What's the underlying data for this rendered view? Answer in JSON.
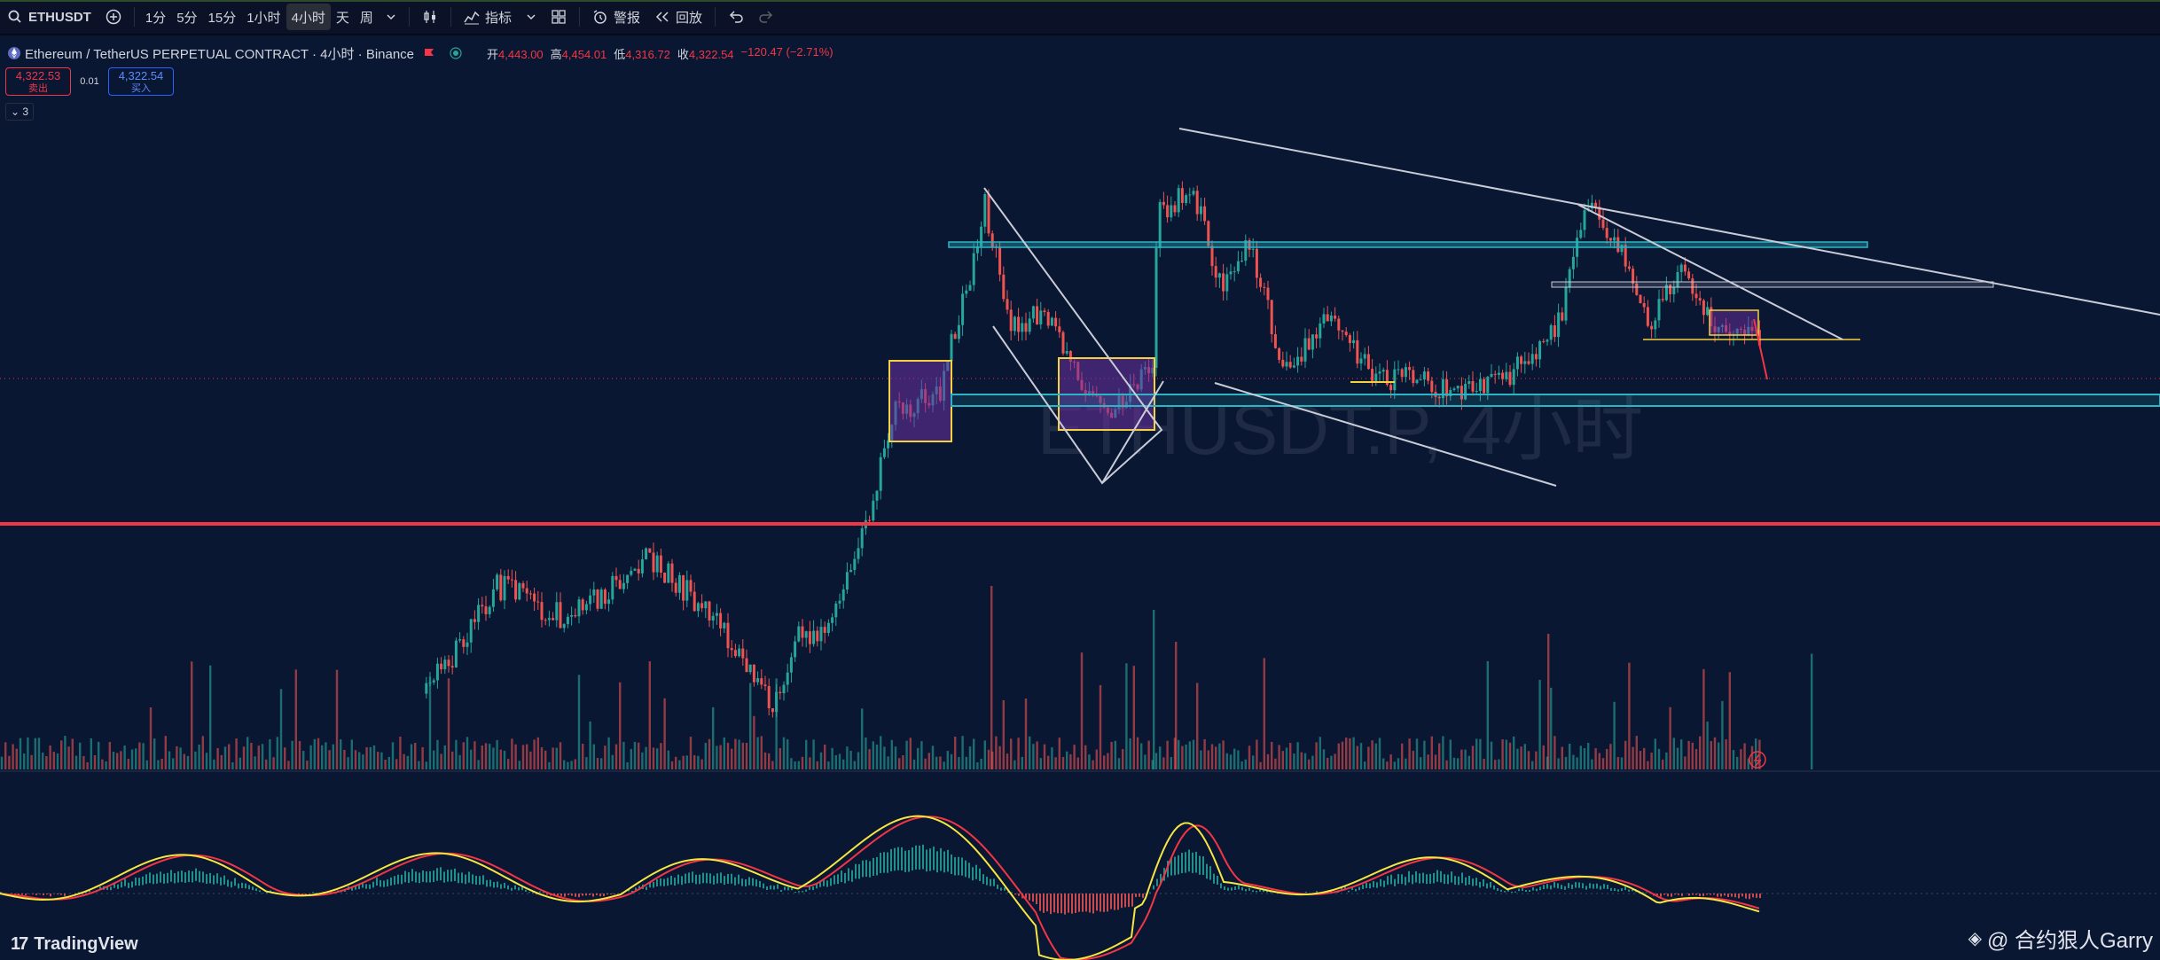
{
  "toolbar": {
    "symbol": "ETHUSDT",
    "intervals": [
      "1分",
      "5分",
      "15分",
      "1小时",
      "4小时",
      "天",
      "周"
    ],
    "active_interval": "4小时",
    "indicators_label": "指标",
    "alert_label": "警报",
    "replay_label": "回放"
  },
  "legend": {
    "title": "Ethereum / TetherUS PERPETUAL CONTRACT · 4小时 · Binance",
    "open_label": "开",
    "open": "4,443.00",
    "high_label": "高",
    "high": "4,454.01",
    "low_label": "低",
    "low": "4,316.72",
    "close_label": "收",
    "close": "4,322.54",
    "change": "−120.47 (−2.71%)"
  },
  "trade": {
    "sell_price": "4,322.53",
    "sell_label": "卖出",
    "spread": "0.01",
    "buy_price": "4,322.54",
    "buy_label": "买入"
  },
  "collapse": "⌄ 3",
  "watermark": "ETHUSDT.P, 4小时",
  "branding": {
    "tv": "TradingView",
    "author": "@ 合约狠人Garry"
  },
  "colors": {
    "background": "#0a1733",
    "up": "#26a69a",
    "down": "#ef5350",
    "trendline": "#c9ccd6",
    "channel": "#2bb5c4",
    "box_fill": "#6b2fa0",
    "box_border": "#f5d142",
    "support": "#f23645",
    "signal_fast": "#f5e642",
    "signal_slow": "#f23645"
  }
}
